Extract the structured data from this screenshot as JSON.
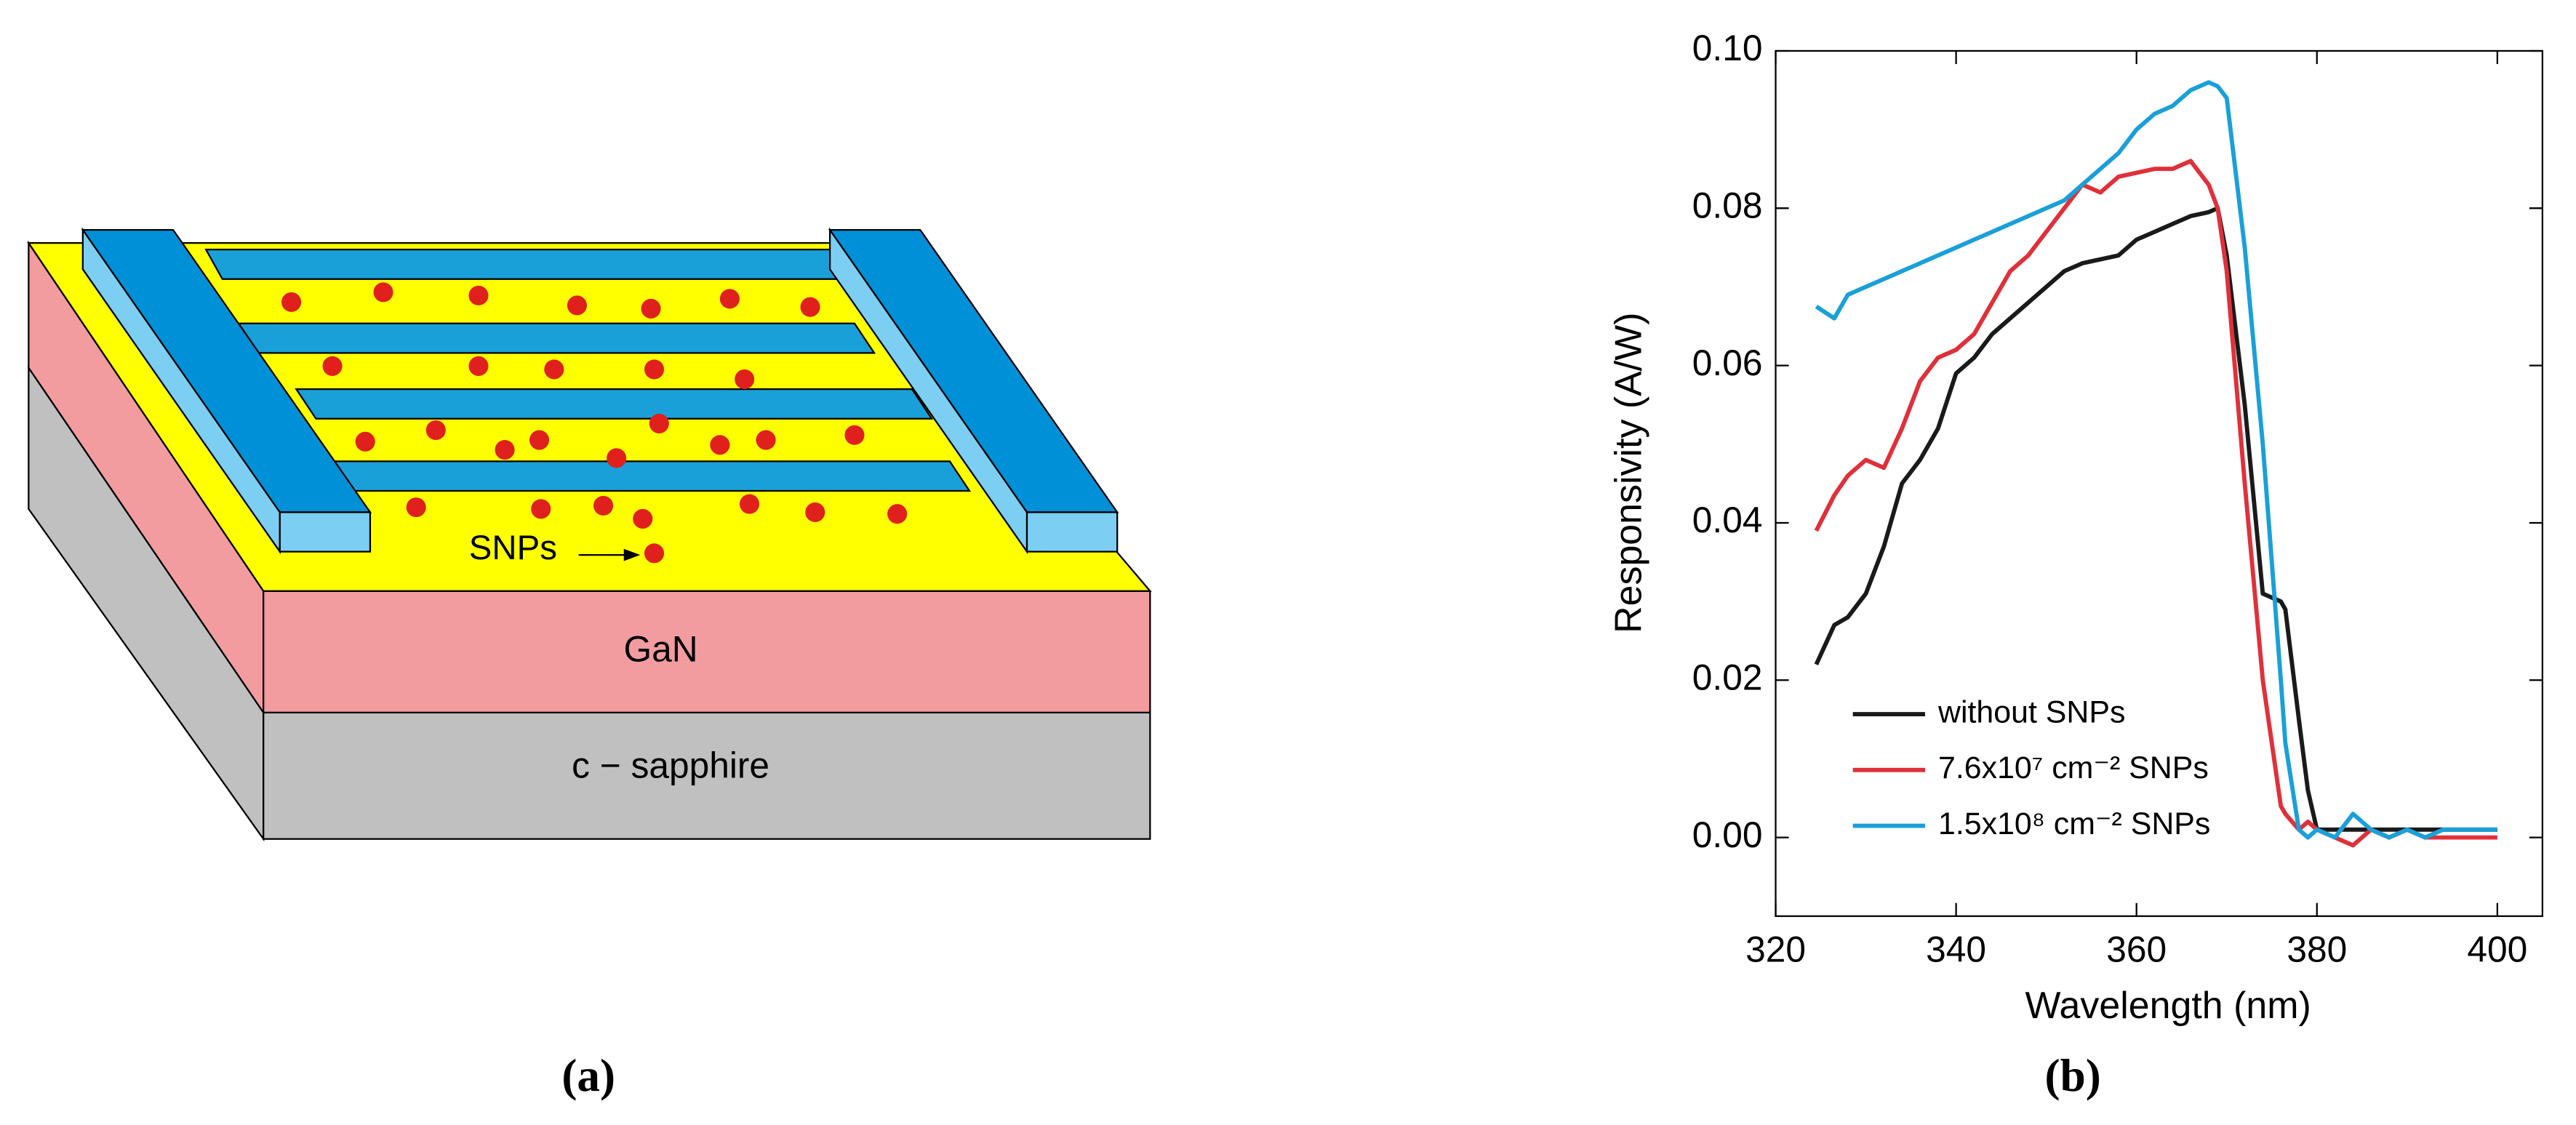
{
  "diagram": {
    "labels": {
      "snps": "SNPs",
      "gan": "GaN",
      "substrate": "c − sapphire"
    },
    "caption": "(a)"
  },
  "chart_data": {
    "type": "line",
    "caption": "(b)",
    "x_label": "Wavelength (nm)",
    "y_label": "Responsivity (A/W)",
    "x": [
      324.5,
      326.5,
      328,
      330,
      332,
      334,
      336,
      338,
      340,
      342,
      344,
      346,
      348,
      350,
      352,
      354,
      356,
      358,
      360,
      362,
      364,
      366,
      368,
      369,
      370,
      372,
      374,
      376,
      376.5,
      378,
      379,
      380,
      382,
      384,
      386,
      388,
      390,
      392,
      394,
      396,
      398,
      400
    ],
    "series": [
      {
        "name": "without SNPs",
        "color": "#1a1a1a",
        "values": [
          0.022,
          0.027,
          0.028,
          0.031,
          0.037,
          0.045,
          0.048,
          0.052,
          0.059,
          0.061,
          0.064,
          0.066,
          0.068,
          0.07,
          0.072,
          0.073,
          0.0735,
          0.074,
          0.076,
          0.077,
          0.078,
          0.079,
          0.0795,
          0.08,
          0.074,
          0.055,
          0.031,
          0.03,
          0.029,
          0.015,
          0.006,
          0.001,
          0.001,
          0.001,
          0.001,
          0.001,
          0.001,
          0.001,
          0.001,
          0.001,
          0.001,
          0.001
        ]
      },
      {
        "name": "7.6x10⁷ cm⁻² SNPs",
        "color": "#e0303a",
        "values": [
          0.039,
          0.0435,
          0.046,
          0.048,
          0.047,
          0.052,
          0.058,
          0.061,
          0.062,
          0.064,
          0.068,
          0.072,
          0.074,
          0.077,
          0.08,
          0.083,
          0.082,
          0.084,
          0.0845,
          0.085,
          0.085,
          0.086,
          0.083,
          0.08,
          0.072,
          0.045,
          0.02,
          0.004,
          0.003,
          0.001,
          0.002,
          0.001,
          0,
          -0.001,
          0.001,
          0,
          0.001,
          0,
          0,
          0,
          0,
          0
        ]
      },
      {
        "name": "1.5x10⁸ cm⁻² SNPs",
        "color": "#1aa0d8",
        "values": [
          0.0675,
          0.066,
          0.069,
          0.07,
          0.071,
          0.072,
          0.073,
          0.074,
          0.075,
          0.076,
          0.077,
          0.078,
          0.079,
          0.08,
          0.081,
          0.083,
          0.085,
          0.087,
          0.09,
          0.092,
          0.093,
          0.095,
          0.096,
          0.0955,
          0.094,
          0.075,
          0.05,
          0.02,
          0.012,
          0.001,
          0,
          0.001,
          0,
          0.003,
          0.001,
          0,
          0.001,
          0,
          0.001,
          0.001,
          0.001,
          0.001
        ]
      }
    ],
    "xlim": [
      320,
      405
    ],
    "ylim": [
      -0.01,
      0.1
    ],
    "xticks": [
      320,
      340,
      360,
      380,
      400
    ],
    "yticks": [
      {
        "value": 0,
        "label": "0.00"
      },
      {
        "value": 0.02,
        "label": "0.02"
      },
      {
        "value": 0.04,
        "label": "0.04"
      },
      {
        "value": 0.06,
        "label": "0.06"
      },
      {
        "value": 0.08,
        "label": "0.08"
      },
      {
        "value": 0.1,
        "label": "0.10"
      }
    ],
    "legend": "lower left"
  }
}
